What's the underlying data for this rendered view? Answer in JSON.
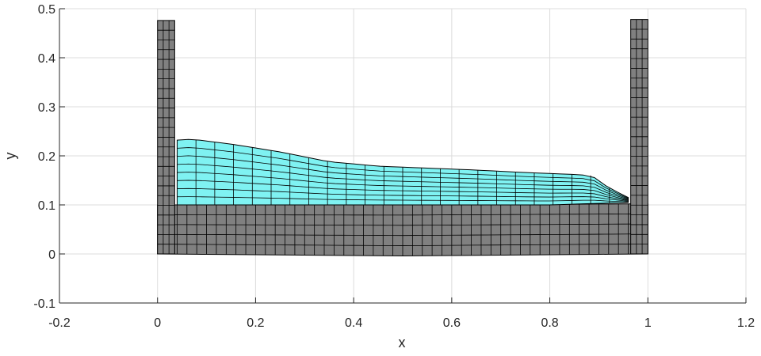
{
  "chart_data": {
    "type": "mesh",
    "xlabel": "x",
    "ylabel": "y",
    "xlim": [
      -0.2,
      1.2
    ],
    "ylim": [
      -0.1,
      0.5
    ],
    "xticks": [
      -0.2,
      0,
      0.2,
      0.4,
      0.6,
      0.8,
      1,
      1.2
    ],
    "xtick_labels": [
      "-0.2",
      "0",
      "0.2",
      "0.4",
      "0.6",
      "0.8",
      "1",
      "1.2"
    ],
    "yticks": [
      -0.1,
      0,
      0.1,
      0.2,
      0.3,
      0.4,
      0.5
    ],
    "ytick_labels": [
      "-0.1",
      "0",
      "0.1",
      "0.2",
      "0.3",
      "0.4",
      "0.5"
    ],
    "grid": true,
    "colors": {
      "solid_mesh": "#808080",
      "fluid_mesh": "#7ff2f2",
      "mesh_lines": "#000000",
      "grid": "#dcdcdc"
    },
    "series": [
      {
        "kind": "solid",
        "parts": [
          {
            "part": "base",
            "x": [
              0,
              1
            ],
            "bottom": [
              [
                0,
                0.0
              ],
              [
                0.5,
                -0.004
              ],
              [
                1,
                0.0
              ]
            ],
            "top": [
              [
                0.04,
                0.1
              ],
              [
                0.5,
                0.1
              ],
              [
                0.965,
                0.102
              ]
            ],
            "cols": 50,
            "rows": 5
          },
          {
            "part": "left-wall",
            "x": [
              0,
              0.035
            ],
            "y": [
              0,
              0.476
            ],
            "cols": 3,
            "rows": 24
          },
          {
            "part": "right-wall",
            "x": [
              0.965,
              1
            ],
            "y": [
              0,
              0.478
            ],
            "cols": 3,
            "rows": 24
          }
        ]
      },
      {
        "kind": "fluid",
        "cols": 24,
        "rows": 8,
        "bottom_profile": [
          [
            0.04,
            0.1
          ],
          [
            0.2,
            0.1
          ],
          [
            0.4,
            0.1
          ],
          [
            0.6,
            0.1
          ],
          [
            0.8,
            0.1
          ],
          [
            0.96,
            0.105
          ]
        ],
        "top_profile": [
          [
            0.04,
            0.232
          ],
          [
            0.07,
            0.234
          ],
          [
            0.15,
            0.224
          ],
          [
            0.25,
            0.208
          ],
          [
            0.35,
            0.188
          ],
          [
            0.45,
            0.179
          ],
          [
            0.55,
            0.175
          ],
          [
            0.65,
            0.171
          ],
          [
            0.75,
            0.166
          ],
          [
            0.85,
            0.162
          ],
          [
            0.885,
            0.16
          ],
          [
            0.92,
            0.135
          ],
          [
            0.96,
            0.115
          ]
        ]
      }
    ]
  }
}
